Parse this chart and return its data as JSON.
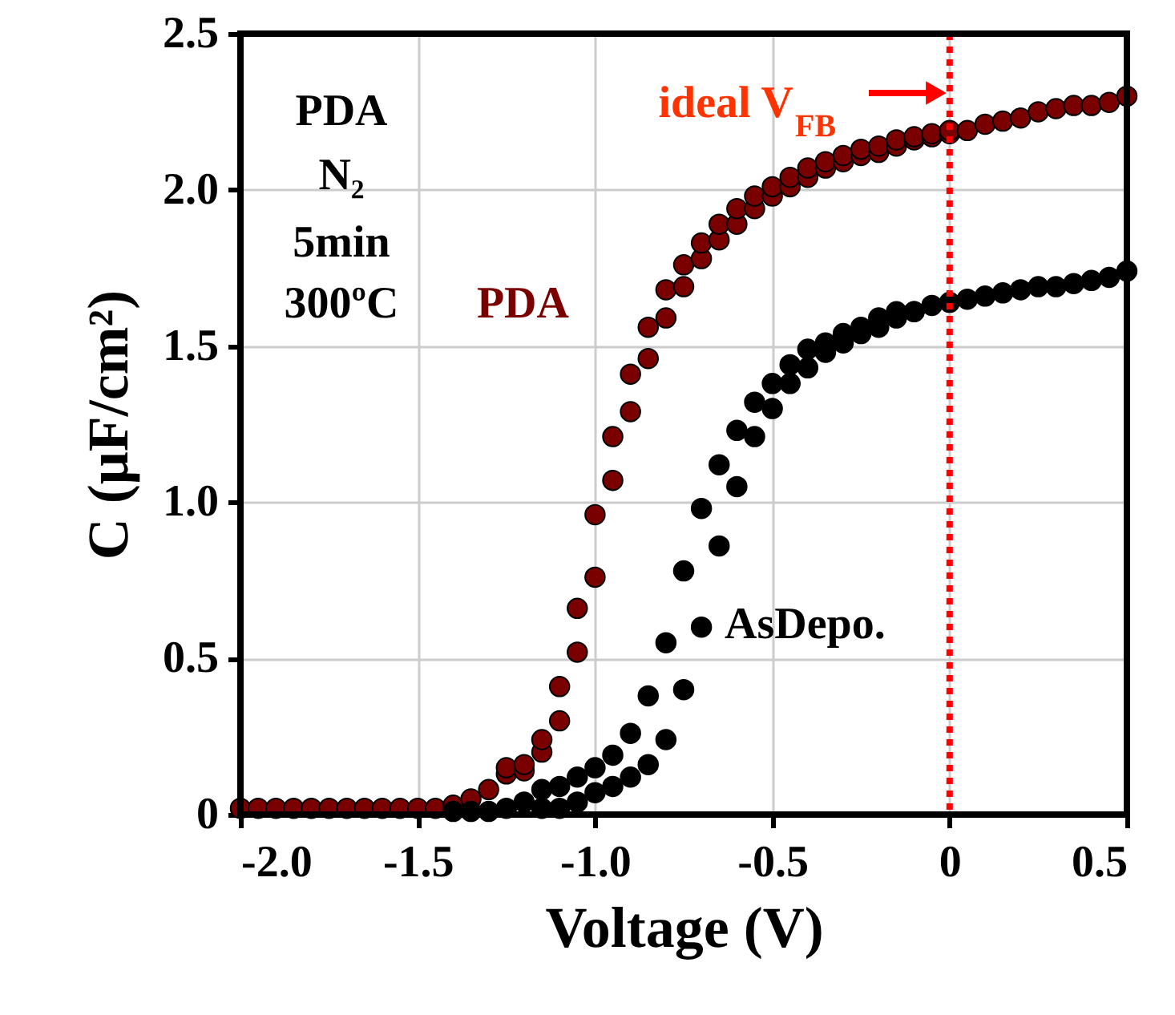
{
  "chart_data": {
    "type": "scatter",
    "xlabel": "Voltage (V)",
    "ylabel": "C (μF/cm²)",
    "xlim": [
      -2.0,
      0.5
    ],
    "ylim": [
      0,
      2.5
    ],
    "xticks": [
      {
        "value": -2.0,
        "label": "-2.0"
      },
      {
        "value": -1.5,
        "label": "-1.5"
      },
      {
        "value": -1.0,
        "label": "-1.0"
      },
      {
        "value": -0.5,
        "label": "-0.5"
      },
      0,
      0.5
    ],
    "yticks": [
      0,
      0.5,
      {
        "value": 1.0,
        "label": "1.0"
      },
      1.5,
      {
        "value": 2.0,
        "label": "2.0"
      },
      2.5
    ],
    "grid": true,
    "marker": "circle",
    "series": [
      {
        "name": "PDA",
        "color": "#7a0000",
        "x": [
          -2.0,
          -1.95,
          -1.9,
          -1.85,
          -1.8,
          -1.75,
          -1.7,
          -1.65,
          -1.6,
          -1.55,
          -1.5,
          -1.45,
          -1.4,
          -1.35,
          -1.3,
          -1.25,
          -1.25,
          -1.2,
          -1.2,
          -1.15,
          -1.15,
          -1.1,
          -1.1,
          -1.05,
          -1.05,
          -1.0,
          -1.0,
          -0.95,
          -0.95,
          -0.9,
          -0.9,
          -0.85,
          -0.85,
          -0.8,
          -0.8,
          -0.75,
          -0.75,
          -0.7,
          -0.7,
          -0.65,
          -0.65,
          -0.6,
          -0.6,
          -0.55,
          -0.55,
          -0.5,
          -0.5,
          -0.45,
          -0.45,
          -0.4,
          -0.4,
          -0.35,
          -0.35,
          -0.3,
          -0.3,
          -0.25,
          -0.25,
          -0.2,
          -0.2,
          -0.15,
          -0.15,
          -0.1,
          -0.1,
          -0.05,
          -0.05,
          0,
          0,
          0.05,
          0.1,
          0.15,
          0.2,
          0.25,
          0.3,
          0.35,
          0.4,
          0.45,
          0.5
        ],
        "values": [
          0.02,
          0.02,
          0.02,
          0.02,
          0.02,
          0.02,
          0.02,
          0.02,
          0.02,
          0.02,
          0.02,
          0.02,
          0.03,
          0.05,
          0.08,
          0.13,
          0.15,
          0.14,
          0.16,
          0.2,
          0.24,
          0.3,
          0.41,
          0.52,
          0.66,
          0.76,
          0.96,
          1.07,
          1.21,
          1.29,
          1.41,
          1.46,
          1.56,
          1.59,
          1.68,
          1.69,
          1.76,
          1.78,
          1.83,
          1.84,
          1.89,
          1.89,
          1.94,
          1.94,
          1.98,
          1.98,
          2.01,
          2.01,
          2.04,
          2.04,
          2.07,
          2.07,
          2.09,
          2.09,
          2.11,
          2.11,
          2.13,
          2.12,
          2.14,
          2.14,
          2.16,
          2.16,
          2.17,
          2.17,
          2.18,
          2.18,
          2.19,
          2.19,
          2.21,
          2.22,
          2.23,
          2.25,
          2.26,
          2.27,
          2.27,
          2.28,
          2.3
        ]
      },
      {
        "name": "AsDepo.",
        "color": "#000000",
        "x": [
          -1.4,
          -1.35,
          -1.3,
          -1.25,
          -1.2,
          -1.15,
          -1.15,
          -1.1,
          -1.1,
          -1.05,
          -1.05,
          -1.0,
          -1.0,
          -0.95,
          -0.95,
          -0.9,
          -0.9,
          -0.85,
          -0.85,
          -0.8,
          -0.8,
          -0.75,
          -0.75,
          -0.7,
          -0.7,
          -0.65,
          -0.65,
          -0.6,
          -0.6,
          -0.55,
          -0.55,
          -0.5,
          -0.5,
          -0.45,
          -0.45,
          -0.4,
          -0.4,
          -0.35,
          -0.35,
          -0.3,
          -0.3,
          -0.25,
          -0.25,
          -0.2,
          -0.2,
          -0.15,
          -0.15,
          -0.1,
          -0.1,
          -0.05,
          0,
          0.05,
          0.1,
          0.15,
          0.2,
          0.25,
          0.3,
          0.35,
          0.4,
          0.45,
          0.5
        ],
        "values": [
          0.01,
          0.01,
          0.01,
          0.02,
          0.04,
          0.02,
          0.08,
          0.02,
          0.09,
          0.04,
          0.12,
          0.07,
          0.15,
          0.09,
          0.19,
          0.12,
          0.26,
          0.16,
          0.38,
          0.24,
          0.55,
          0.4,
          0.78,
          0.6,
          0.98,
          0.86,
          1.12,
          1.05,
          1.23,
          1.21,
          1.32,
          1.3,
          1.38,
          1.38,
          1.44,
          1.43,
          1.49,
          1.48,
          1.51,
          1.51,
          1.54,
          1.54,
          1.56,
          1.56,
          1.59,
          1.59,
          1.61,
          1.61,
          1.61,
          1.63,
          1.64,
          1.65,
          1.66,
          1.67,
          1.68,
          1.69,
          1.69,
          1.7,
          1.71,
          1.72,
          1.74
        ]
      }
    ],
    "ref_lines": [
      {
        "axis": "x",
        "value": 0,
        "label": "ideal V$_{FB}$",
        "color": "#ff0000",
        "line_style": "dotted"
      }
    ],
    "annotations": [
      "PDA",
      "N₂",
      "5min",
      "300ºC"
    ]
  }
}
